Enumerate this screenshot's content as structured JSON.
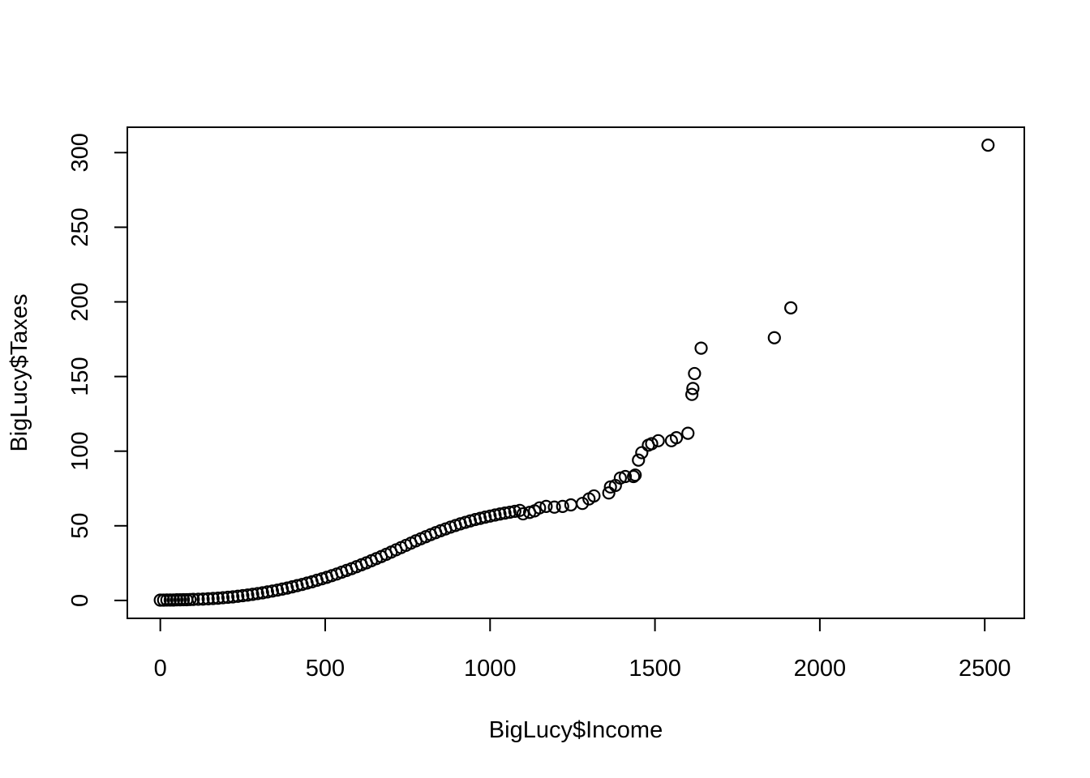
{
  "chart_data": {
    "type": "scatter",
    "title": "",
    "xlabel": "BigLucy$Income",
    "ylabel": "BigLucy$Taxes",
    "xlim": [
      -100,
      2620
    ],
    "ylim": [
      -12,
      317
    ],
    "xticks": [
      0,
      500,
      1000,
      1500,
      2000,
      2500
    ],
    "xtick_labels": [
      "0",
      "500",
      "1000",
      "1500",
      "2000",
      "2500"
    ],
    "yticks": [
      0,
      50,
      100,
      150,
      200,
      250,
      300
    ],
    "ytick_labels": [
      "0",
      "50",
      "100",
      "150",
      "200",
      "250",
      "300"
    ],
    "grid": false,
    "legend": "none",
    "marker": "open-circle",
    "marker_color": "#000000",
    "series": [
      {
        "x": [
          0,
          10,
          20,
          30,
          40,
          50,
          60,
          70,
          80,
          90,
          100,
          115,
          130,
          145,
          160,
          175,
          190,
          205,
          220,
          235,
          250,
          265,
          280,
          295,
          310,
          325,
          340,
          355,
          370,
          385,
          400,
          415,
          430,
          445,
          460,
          475,
          490,
          505,
          520,
          535,
          550,
          565,
          580,
          595,
          610,
          625,
          640,
          655,
          670,
          685,
          700,
          715,
          730,
          745,
          760,
          775,
          790,
          805,
          820,
          835,
          850,
          865,
          880,
          895,
          910,
          925,
          940,
          955,
          970,
          985,
          1000,
          1015,
          1030,
          1045,
          1060,
          1075,
          1090,
          1100,
          1120,
          1135,
          1150,
          1170,
          1195,
          1220,
          1245,
          1280,
          1300,
          1315,
          1360,
          1365,
          1380,
          1395,
          1410,
          1435,
          1440,
          1450,
          1460,
          1480,
          1490,
          1510,
          1550,
          1565,
          1600,
          1612,
          1615,
          1620,
          1640,
          1862,
          1912,
          2510
        ],
        "y": [
          0.2,
          0.2,
          0.3,
          0.3,
          0.3,
          0.4,
          0.4,
          0.5,
          0.5,
          0.6,
          0.7,
          0.8,
          0.9,
          1.1,
          1.3,
          1.5,
          1.8,
          2.1,
          2.4,
          2.8,
          3.2,
          3.6,
          4.1,
          4.6,
          5.1,
          5.7,
          6.3,
          6.9,
          7.6,
          8.3,
          9.1,
          9.9,
          10.7,
          11.6,
          12.5,
          13.5,
          14.5,
          15.5,
          16.6,
          17.7,
          18.9,
          20.1,
          21.3,
          22.6,
          23.9,
          25.2,
          26.6,
          28,
          29.4,
          30.9,
          32.4,
          33.9,
          35.4,
          36.9,
          38.4,
          39.9,
          41.3,
          42.7,
          44.1,
          45.4,
          46.7,
          47.9,
          49.1,
          50.2,
          51.3,
          52.3,
          53.3,
          54.2,
          55,
          55.8,
          56.5,
          57.2,
          57.9,
          58.5,
          59.1,
          59.7,
          60.3,
          58,
          59,
          60,
          62,
          63,
          62.5,
          63,
          64,
          65,
          68,
          70,
          72,
          76,
          77,
          82,
          83,
          83,
          84,
          94,
          99,
          104,
          105,
          107,
          107,
          109,
          112,
          138,
          142,
          152,
          169,
          176,
          196,
          305
        ]
      }
    ]
  }
}
